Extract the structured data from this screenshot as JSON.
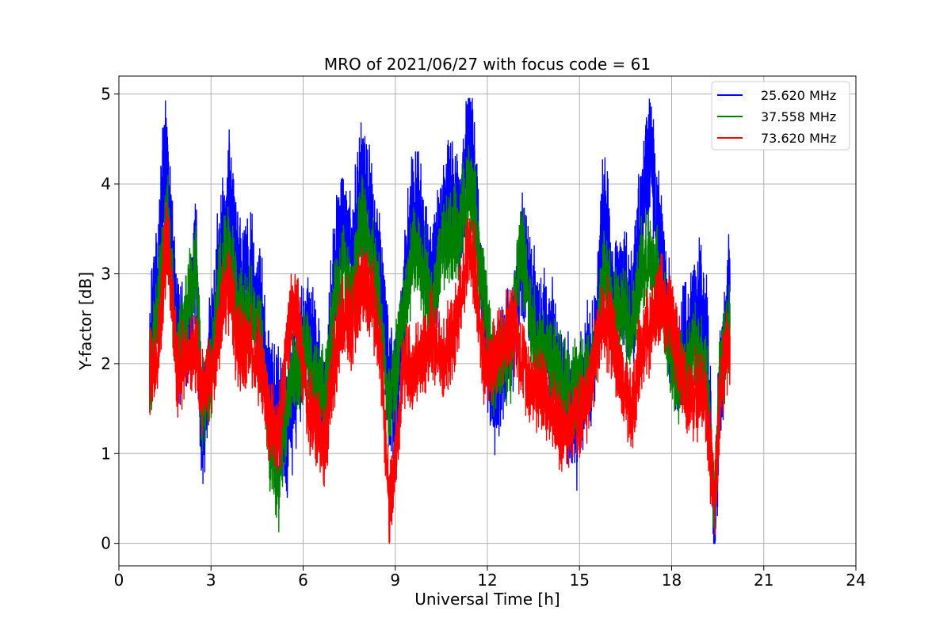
{
  "chart_data": {
    "type": "line",
    "title": "MRO of 2021/06/27 with focus code = 61",
    "xlabel": "Universal Time [h]",
    "ylabel": "Y-factor [dB]",
    "xlim": [
      0,
      24
    ],
    "ylim": [
      -0.25,
      5.2
    ],
    "xticks": [
      0,
      3,
      6,
      9,
      12,
      15,
      18,
      21,
      24
    ],
    "yticks": [
      0,
      1,
      2,
      3,
      4,
      5
    ],
    "grid": true,
    "legend_position": "top-right",
    "series": [
      {
        "name": "25.620 MHz",
        "color": "#0000ff",
        "x": [
          1.0,
          1.3,
          1.5,
          1.6,
          1.9,
          2.2,
          2.5,
          2.7,
          3.0,
          3.3,
          3.6,
          3.9,
          4.2,
          4.6,
          4.9,
          5.2,
          5.5,
          5.8,
          6.1,
          6.4,
          6.7,
          7.0,
          7.3,
          7.6,
          7.9,
          8.2,
          8.5,
          8.8,
          9.0,
          9.3,
          9.6,
          9.9,
          10.2,
          10.5,
          10.8,
          11.1,
          11.4,
          11.6,
          11.9,
          12.2,
          12.5,
          12.8,
          13.1,
          13.4,
          13.7,
          14.0,
          14.3,
          14.6,
          14.9,
          15.2,
          15.5,
          15.8,
          16.1,
          16.4,
          16.7,
          17.0,
          17.3,
          17.6,
          17.9,
          18.2,
          18.5,
          18.8,
          19.1,
          19.4,
          19.6,
          19.9
        ],
        "values": [
          2.2,
          3.0,
          4.3,
          4.0,
          2.3,
          2.1,
          3.3,
          1.2,
          2.3,
          3.2,
          4.0,
          2.9,
          3.0,
          2.6,
          1.7,
          1.5,
          1.2,
          1.9,
          2.4,
          2.0,
          1.4,
          2.9,
          3.7,
          3.2,
          4.1,
          3.6,
          3.0,
          1.8,
          1.6,
          2.8,
          3.8,
          3.5,
          2.8,
          3.5,
          3.9,
          3.7,
          4.6,
          3.9,
          2.4,
          1.6,
          2.0,
          2.3,
          3.3,
          2.8,
          2.3,
          2.4,
          1.9,
          1.6,
          1.3,
          2.0,
          2.1,
          3.9,
          2.7,
          2.9,
          2.5,
          3.7,
          4.3,
          3.4,
          2.4,
          2.0,
          2.3,
          2.7,
          2.5,
          0.2,
          1.9,
          2.8
        ]
      },
      {
        "name": "37.558 MHz",
        "color": "#008000",
        "x": [
          1.0,
          1.3,
          1.5,
          1.6,
          1.9,
          2.2,
          2.5,
          2.7,
          3.0,
          3.3,
          3.6,
          3.9,
          4.2,
          4.6,
          4.9,
          5.2,
          5.5,
          5.8,
          6.1,
          6.4,
          6.7,
          7.0,
          7.3,
          7.6,
          7.9,
          8.2,
          8.5,
          8.8,
          9.0,
          9.3,
          9.6,
          9.9,
          10.2,
          10.5,
          10.8,
          11.1,
          11.4,
          11.6,
          11.9,
          12.2,
          12.5,
          12.8,
          13.1,
          13.4,
          13.7,
          14.0,
          14.3,
          14.6,
          14.9,
          15.2,
          15.5,
          15.8,
          16.1,
          16.4,
          16.7,
          17.0,
          17.3,
          17.6,
          17.9,
          18.2,
          18.5,
          18.8,
          19.1,
          19.4,
          19.6,
          19.9
        ],
        "values": [
          1.8,
          2.8,
          3.4,
          3.5,
          2.1,
          2.5,
          3.2,
          1.4,
          1.9,
          2.9,
          3.3,
          2.5,
          2.6,
          2.3,
          1.2,
          0.7,
          1.6,
          2.0,
          2.2,
          1.7,
          1.6,
          2.6,
          3.1,
          2.8,
          3.6,
          3.3,
          2.6,
          1.5,
          1.9,
          2.6,
          3.3,
          3.0,
          2.5,
          3.2,
          3.4,
          3.5,
          4.0,
          3.6,
          2.7,
          1.9,
          2.0,
          2.2,
          3.4,
          2.5,
          2.1,
          2.1,
          1.8,
          1.8,
          1.7,
          1.9,
          2.0,
          3.1,
          2.5,
          2.6,
          2.4,
          3.0,
          3.2,
          2.9,
          2.3,
          1.8,
          2.0,
          2.2,
          1.9,
          0.5,
          2.0,
          2.4
        ]
      },
      {
        "name": "73.620 MHz",
        "color": "#ff0000",
        "x": [
          1.0,
          1.3,
          1.5,
          1.6,
          1.9,
          2.2,
          2.5,
          2.7,
          3.0,
          3.3,
          3.6,
          3.9,
          4.2,
          4.6,
          4.9,
          5.2,
          5.5,
          5.8,
          6.1,
          6.4,
          6.7,
          7.0,
          7.3,
          7.6,
          7.9,
          8.2,
          8.5,
          8.8,
          9.0,
          9.3,
          9.6,
          9.9,
          10.2,
          10.5,
          10.8,
          11.1,
          11.4,
          11.6,
          11.9,
          12.2,
          12.5,
          12.8,
          13.1,
          13.4,
          13.7,
          14.0,
          14.3,
          14.6,
          14.9,
          15.2,
          15.5,
          15.8,
          16.1,
          16.4,
          16.7,
          17.0,
          17.3,
          17.6,
          17.9,
          18.2,
          18.5,
          18.8,
          19.1,
          19.4,
          19.6,
          19.9
        ],
        "values": [
          1.9,
          2.2,
          3.2,
          3.4,
          1.9,
          2.1,
          2.2,
          1.7,
          1.8,
          2.5,
          2.9,
          2.1,
          2.2,
          2.0,
          1.4,
          1.1,
          2.4,
          2.6,
          1.6,
          1.3,
          1.1,
          2.0,
          2.5,
          2.4,
          2.9,
          2.8,
          2.3,
          0.4,
          0.9,
          2.0,
          1.9,
          2.1,
          2.3,
          2.0,
          2.2,
          2.6,
          3.3,
          3.0,
          1.9,
          2.1,
          2.2,
          2.5,
          2.1,
          1.8,
          1.7,
          1.6,
          1.3,
          1.3,
          1.4,
          1.5,
          2.1,
          2.5,
          2.3,
          1.7,
          1.4,
          2.2,
          2.4,
          2.7,
          2.6,
          2.2,
          1.5,
          1.7,
          1.6,
          0.4,
          1.8,
          2.3
        ]
      }
    ]
  }
}
